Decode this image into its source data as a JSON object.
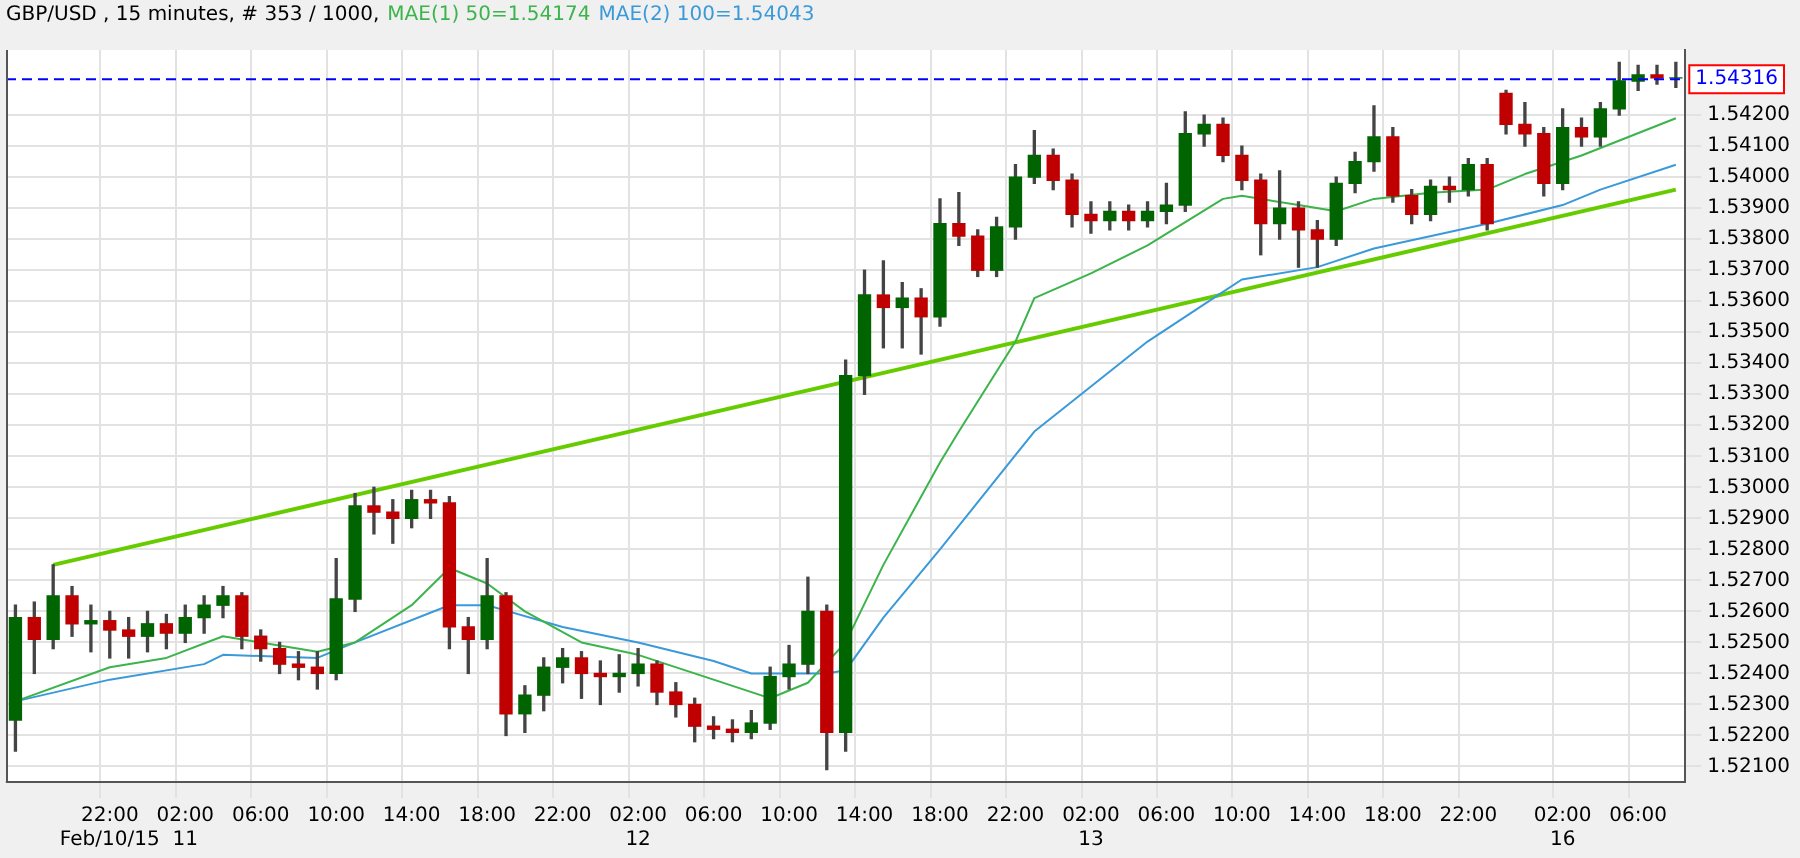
{
  "chart_data": {
    "type": "candlestick",
    "title": "GBP/USD , 15 minutes, # 353 / 1000,",
    "categories": [
      null,
      null,
      null,
      null,
      null,
      "22:00\nFeb/10/15",
      null,
      null,
      null,
      "02:00\n11",
      null,
      null,
      null,
      "06:00",
      null,
      null,
      null,
      "10:00",
      null,
      null,
      null,
      "14:00",
      null,
      null,
      null,
      "18:00",
      null,
      null,
      null,
      "22:00",
      null,
      null,
      null,
      "02:00\n12",
      null,
      null,
      null,
      "06:00",
      null,
      null,
      null,
      "10:00",
      null,
      null,
      null,
      "14:00",
      null,
      null,
      null,
      "18:00",
      null,
      null,
      null,
      "22:00",
      null,
      null,
      null,
      "02:00\n13",
      null,
      null,
      null,
      "06:00",
      null,
      null,
      null,
      "10:00",
      null,
      null,
      null,
      "14:00",
      null,
      null,
      null,
      "18:00",
      null,
      null,
      null,
      "22:00",
      null,
      null,
      null,
      null,
      "02:00\n16",
      null,
      null,
      null,
      "06:00",
      null,
      null
    ],
    "ohlc": [
      [
        1.5225,
        1.5262,
        1.5215,
        1.5258
      ],
      [
        1.5258,
        1.5263,
        1.524,
        1.5251
      ],
      [
        1.5251,
        1.5275,
        1.5248,
        1.5265
      ],
      [
        1.5265,
        1.5268,
        1.5252,
        1.5256
      ],
      [
        1.5256,
        1.5262,
        1.5247,
        1.5257
      ],
      [
        1.5257,
        1.526,
        1.5245,
        1.5254
      ],
      [
        1.5254,
        1.5258,
        1.5245,
        1.5252
      ],
      [
        1.5252,
        1.526,
        1.5247,
        1.5256
      ],
      [
        1.5256,
        1.5259,
        1.5248,
        1.5253
      ],
      [
        1.5253,
        1.5262,
        1.525,
        1.5258
      ],
      [
        1.5258,
        1.5265,
        1.5253,
        1.5262
      ],
      [
        1.5262,
        1.5268,
        1.5258,
        1.5265
      ],
      [
        1.5265,
        1.5266,
        1.5248,
        1.5252
      ],
      [
        1.5252,
        1.5254,
        1.5244,
        1.5248
      ],
      [
        1.5248,
        1.525,
        1.524,
        1.5243
      ],
      [
        1.5243,
        1.5247,
        1.5238,
        1.5242
      ],
      [
        1.5242,
        1.5247,
        1.5235,
        1.524
      ],
      [
        1.524,
        1.5277,
        1.5238,
        1.5264
      ],
      [
        1.5264,
        1.5298,
        1.526,
        1.5294
      ],
      [
        1.5294,
        1.53,
        1.5285,
        1.5292
      ],
      [
        1.5292,
        1.5296,
        1.5282,
        1.529
      ],
      [
        1.529,
        1.5299,
        1.5287,
        1.5296
      ],
      [
        1.5296,
        1.5299,
        1.529,
        1.5295
      ],
      [
        1.5295,
        1.5297,
        1.5248,
        1.5255
      ],
      [
        1.5255,
        1.5258,
        1.524,
        1.5251
      ],
      [
        1.5251,
        1.5277,
        1.5248,
        1.5265
      ],
      [
        1.5265,
        1.5266,
        1.522,
        1.5227
      ],
      [
        1.5227,
        1.5236,
        1.5221,
        1.5233
      ],
      [
        1.5233,
        1.5245,
        1.5228,
        1.5242
      ],
      [
        1.5242,
        1.5248,
        1.5237,
        1.5245
      ],
      [
        1.5245,
        1.5247,
        1.5232,
        1.524
      ],
      [
        1.524,
        1.5244,
        1.523,
        1.5239
      ],
      [
        1.5239,
        1.5246,
        1.5234,
        1.524
      ],
      [
        1.524,
        1.5248,
        1.5236,
        1.5243
      ],
      [
        1.5243,
        1.5244,
        1.523,
        1.5234
      ],
      [
        1.5234,
        1.5237,
        1.5226,
        1.523
      ],
      [
        1.523,
        1.5232,
        1.5218,
        1.5223
      ],
      [
        1.5223,
        1.5226,
        1.5219,
        1.5222
      ],
      [
        1.5222,
        1.5225,
        1.5218,
        1.5221
      ],
      [
        1.5221,
        1.5228,
        1.5219,
        1.5224
      ],
      [
        1.5224,
        1.5242,
        1.5222,
        1.5239
      ],
      [
        1.5239,
        1.5249,
        1.5235,
        1.5243
      ],
      [
        1.5243,
        1.5271,
        1.524,
        1.526
      ],
      [
        1.526,
        1.5262,
        1.5209,
        1.5221
      ],
      [
        1.5221,
        1.5341,
        1.5215,
        1.5336
      ],
      [
        1.5336,
        1.537,
        1.533,
        1.5362
      ],
      [
        1.5362,
        1.5373,
        1.5345,
        1.5358
      ],
      [
        1.5358,
        1.5366,
        1.5345,
        1.5361
      ],
      [
        1.5361,
        1.5364,
        1.5343,
        1.5355
      ],
      [
        1.5355,
        1.5393,
        1.5352,
        1.5385
      ],
      [
        1.5385,
        1.5395,
        1.5378,
        1.5381
      ],
      [
        1.5381,
        1.5383,
        1.5368,
        1.537
      ],
      [
        1.537,
        1.5387,
        1.5368,
        1.5384
      ],
      [
        1.5384,
        1.5404,
        1.538,
        1.54
      ],
      [
        1.54,
        1.5415,
        1.5398,
        1.5407
      ],
      [
        1.5407,
        1.5409,
        1.5396,
        1.5399
      ],
      [
        1.5399,
        1.5401,
        1.5384,
        1.5388
      ],
      [
        1.5388,
        1.5392,
        1.5382,
        1.5386
      ],
      [
        1.5386,
        1.5392,
        1.5383,
        1.5389
      ],
      [
        1.5389,
        1.5391,
        1.5383,
        1.5386
      ],
      [
        1.5386,
        1.5392,
        1.5384,
        1.5389
      ],
      [
        1.5389,
        1.5398,
        1.5385,
        1.5391
      ],
      [
        1.5391,
        1.5421,
        1.5389,
        1.5414
      ],
      [
        1.5414,
        1.542,
        1.541,
        1.5417
      ],
      [
        1.5417,
        1.5419,
        1.5405,
        1.5407
      ],
      [
        1.5407,
        1.541,
        1.5396,
        1.5399
      ],
      [
        1.5399,
        1.5401,
        1.5375,
        1.5385
      ],
      [
        1.5385,
        1.5402,
        1.538,
        1.539
      ],
      [
        1.539,
        1.5392,
        1.5371,
        1.5383
      ],
      [
        1.5383,
        1.5386,
        1.5371,
        1.538
      ],
      [
        1.538,
        1.54,
        1.5378,
        1.5398
      ],
      [
        1.5398,
        1.5408,
        1.5395,
        1.5405
      ],
      [
        1.5405,
        1.5423,
        1.5402,
        1.5413
      ],
      [
        1.5413,
        1.5416,
        1.5392,
        1.5394
      ],
      [
        1.5394,
        1.5396,
        1.5385,
        1.5388
      ],
      [
        1.5388,
        1.5399,
        1.5386,
        1.5397
      ],
      [
        1.5397,
        1.54,
        1.5392,
        1.5396
      ],
      [
        1.5396,
        1.5406,
        1.5394,
        1.5404
      ],
      [
        1.5404,
        1.5406,
        1.5383,
        1.5385
      ],
      [
        1.5427,
        1.5428,
        1.5414,
        1.5417
      ],
      [
        1.5417,
        1.5424,
        1.541,
        1.5414
      ],
      [
        1.5414,
        1.5416,
        1.5394,
        1.5398
      ],
      [
        1.5398,
        1.5422,
        1.5396,
        1.5416
      ],
      [
        1.5416,
        1.5419,
        1.541,
        1.5413
      ],
      [
        1.5413,
        1.5424,
        1.541,
        1.5422
      ],
      [
        1.5422,
        1.5437,
        1.542,
        1.5431
      ],
      [
        1.5431,
        1.5436,
        1.5428,
        1.5433
      ],
      [
        1.5433,
        1.5436,
        1.543,
        1.5432
      ],
      [
        1.5432,
        1.5437,
        1.5429,
        1.5432
      ]
    ],
    "colors": [
      "#006400",
      "#c00000",
      "#006400",
      "#c00000",
      "#006400",
      "#c00000",
      "#c00000",
      "#006400",
      "#c00000",
      "#006400",
      "#006400",
      "#006400",
      "#c00000",
      "#c00000",
      "#c00000",
      "#c00000",
      "#c00000",
      "#006400",
      "#006400",
      "#c00000",
      "#c00000",
      "#006400",
      "#c00000",
      "#c00000",
      "#c00000",
      "#006400",
      "#c00000",
      "#006400",
      "#006400",
      "#006400",
      "#c00000",
      "#c00000",
      "#006400",
      "#006400",
      "#c00000",
      "#c00000",
      "#c00000",
      "#c00000",
      "#c00000",
      "#006400",
      "#006400",
      "#006400",
      "#006400",
      "#c00000",
      "#006400",
      "#006400",
      "#c00000",
      "#006400",
      "#c00000",
      "#006400",
      "#c00000",
      "#c00000",
      "#006400",
      "#006400",
      "#006400",
      "#c00000",
      "#c00000",
      "#c00000",
      "#006400",
      "#c00000",
      "#006400",
      "#006400",
      "#006400",
      "#006400",
      "#c00000",
      "#c00000",
      "#c00000",
      "#006400",
      "#c00000",
      "#c00000",
      "#006400",
      "#006400",
      "#006400",
      "#c00000",
      "#c00000",
      "#006400",
      "#c00000",
      "#006400",
      "#c00000",
      "#c00000",
      "#c00000",
      "#c00000",
      "#006400",
      "#c00000",
      "#006400",
      "#006400",
      "#006400",
      "#c00000",
      "#006400"
    ],
    "series": [
      {
        "type": "line",
        "name": "MAE(1) 50=1.54174",
        "color": "#3cb44b",
        "values": [
          1.5231,
          null,
          null,
          null,
          null,
          1.5242,
          null,
          null,
          1.5245,
          null,
          null,
          1.5252,
          null,
          1.525,
          null,
          null,
          1.5247,
          null,
          1.525,
          null,
          null,
          1.5262,
          null,
          1.5274,
          null,
          1.5269,
          null,
          1.526,
          null,
          null,
          1.525,
          null,
          null,
          1.5246,
          null,
          null,
          null,
          1.5238,
          null,
          null,
          1.5232,
          null,
          1.5237,
          null,
          1.525,
          null,
          1.5275,
          null,
          null,
          1.5308,
          1.5318,
          null,
          null,
          1.5347,
          1.5361,
          null,
          null,
          1.5369,
          null,
          null,
          1.5378,
          null,
          null,
          null,
          1.5393,
          1.5394,
          null,
          null,
          1.5391,
          null,
          1.5389,
          null,
          1.5393,
          null,
          null,
          1.5395,
          null,
          null,
          1.5396,
          null,
          1.5401,
          null,
          null,
          1.5407,
          null,
          null,
          null,
          null,
          1.5419
        ]
      },
      {
        "type": "line",
        "name": "MAE(2) 100=1.54043",
        "color": "#3a9ad9",
        "values": [
          1.5231,
          null,
          null,
          null,
          null,
          1.5238,
          null,
          null,
          null,
          null,
          1.5243,
          1.5246,
          null,
          null,
          null,
          null,
          1.5245,
          null,
          1.525,
          null,
          null,
          null,
          null,
          1.5262,
          null,
          1.5262,
          null,
          null,
          null,
          1.5255,
          null,
          null,
          null,
          1.525,
          null,
          null,
          null,
          1.5244,
          null,
          1.524,
          null,
          null,
          null,
          1.524,
          1.5241,
          null,
          1.5258,
          null,
          null,
          1.528,
          null,
          null,
          null,
          null,
          1.5318,
          null,
          null,
          null,
          null,
          null,
          1.5347,
          null,
          null,
          null,
          1.5363,
          1.5367,
          null,
          null,
          null,
          1.5371,
          null,
          null,
          1.5377,
          null,
          null,
          null,
          null,
          null,
          1.5385,
          null,
          null,
          null,
          1.5391,
          null,
          1.5396,
          null,
          null,
          null,
          1.5404
        ]
      },
      {
        "type": "line",
        "color": "#66cc00",
        "values": [
          null,
          null,
          1.5275,
          null,
          null,
          null,
          null,
          null,
          null,
          null,
          null,
          null,
          null,
          null,
          null,
          null,
          null,
          null,
          null,
          null,
          null,
          null,
          null,
          null,
          null,
          null,
          null,
          null,
          null,
          null,
          null,
          null,
          null,
          null,
          null,
          null,
          null,
          null,
          null,
          null,
          null,
          null,
          null,
          null,
          null,
          null,
          null,
          null,
          null,
          null,
          null,
          null,
          null,
          null,
          null,
          null,
          null,
          null,
          null,
          null,
          null,
          null,
          null,
          null,
          null,
          null,
          null,
          null,
          null,
          null,
          null,
          null,
          null,
          null,
          null,
          null,
          null,
          null,
          null,
          null,
          null,
          null,
          null,
          null,
          null,
          null,
          null,
          null,
          1.5396
        ]
      }
    ],
    "ylim": [
      1.5205,
      1.5441
    ],
    "yticks": [
      {
        "value": 1.521,
        "label": "1.52100"
      },
      {
        "value": 1.522,
        "label": "1.52200"
      },
      {
        "value": 1.523,
        "label": "1.52300"
      },
      {
        "value": 1.524,
        "label": "1.52400"
      },
      {
        "value": 1.525,
        "label": "1.52500"
      },
      {
        "value": 1.526,
        "label": "1.52600"
      },
      {
        "value": 1.527,
        "label": "1.52700"
      },
      {
        "value": 1.528,
        "label": "1.52800"
      },
      {
        "value": 1.529,
        "label": "1.52900"
      },
      {
        "value": 1.53,
        "label": "1.53000"
      },
      {
        "value": 1.531,
        "label": "1.53100"
      },
      {
        "value": 1.532,
        "label": "1.53200"
      },
      {
        "value": 1.533,
        "label": "1.53300"
      },
      {
        "value": 1.534,
        "label": "1.53400"
      },
      {
        "value": 1.535,
        "label": "1.53500"
      },
      {
        "value": 1.536,
        "label": "1.53600"
      },
      {
        "value": 1.537,
        "label": "1.53700"
      },
      {
        "value": 1.538,
        "label": "1.53800"
      },
      {
        "value": 1.539,
        "label": "1.53900"
      },
      {
        "value": 1.54,
        "label": "1.54000"
      },
      {
        "value": 1.541,
        "label": "1.54100"
      },
      {
        "value": 1.542,
        "label": "1.54200"
      }
    ],
    "ref_lines": [
      {
        "axis": "y",
        "value": 1.54316,
        "label": "1.54316",
        "color": "#0000ff",
        "line_style": "dashed"
      }
    ],
    "grid": true,
    "legend": "top",
    "marker": "none"
  }
}
